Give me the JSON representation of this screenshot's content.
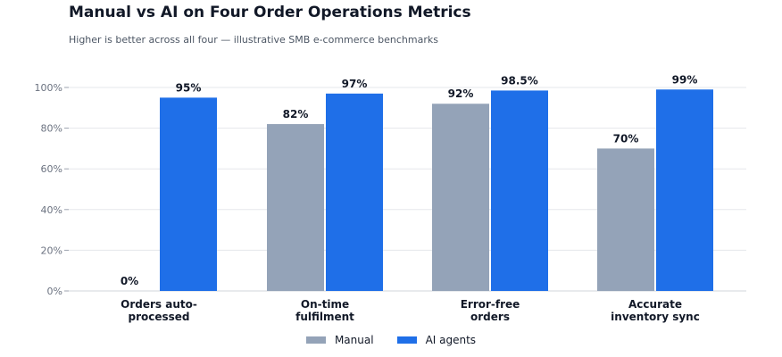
{
  "chart_data": {
    "type": "bar",
    "title": "Manual vs AI on Four Order Operations Metrics",
    "subtitle": "Higher is better across all four — illustrative SMB e-commerce benchmarks",
    "categories": [
      [
        "Orders auto-",
        "processed"
      ],
      [
        "On-time",
        "fulfilment"
      ],
      [
        "Error-free",
        "orders"
      ],
      [
        "Accurate",
        "inventory sync"
      ]
    ],
    "series": [
      {
        "name": "Manual",
        "color": "#94a3b8",
        "values": [
          0,
          82,
          92,
          70
        ],
        "labels": [
          "0%",
          "82%",
          "92%",
          "70%"
        ]
      },
      {
        "name": "AI agents",
        "color": "#1f6fe8",
        "values": [
          95,
          97,
          98.5,
          99
        ],
        "labels": [
          "95%",
          "97%",
          "98.5%",
          "99%"
        ]
      }
    ],
    "ylim": [
      0,
      100
    ],
    "yticks": [
      0,
      20,
      40,
      60,
      80,
      100
    ],
    "ytick_labels": [
      "0%",
      "20%",
      "40%",
      "60%",
      "80%",
      "100%"
    ],
    "grid": true,
    "legend_position": "bottom-center"
  }
}
